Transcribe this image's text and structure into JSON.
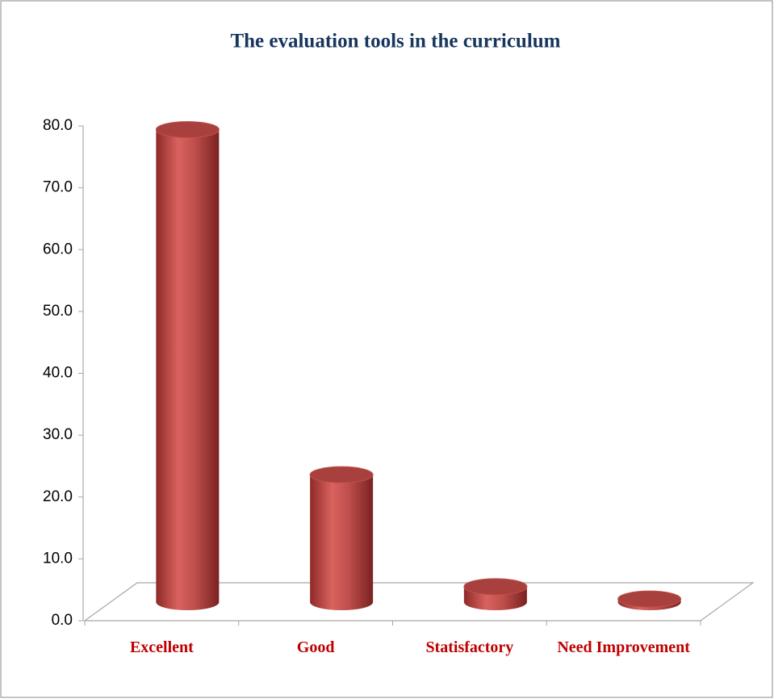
{
  "chart_data": {
    "type": "bar3d",
    "title": "The evaluation tools in the curriculum",
    "categories": [
      "Excellent",
      "Good",
      "Statisfactory",
      "Need Improvement"
    ],
    "values": [
      76.4,
      20.6,
      2.5,
      0.5
    ],
    "color": "#c0504d",
    "ylim": [
      0,
      80
    ],
    "yticks": [
      {
        "value": 0,
        "label": "0.0"
      },
      {
        "value": 10,
        "label": "10.0"
      },
      {
        "value": 20,
        "label": "20.0"
      },
      {
        "value": 30,
        "label": "30.0"
      },
      {
        "value": 40,
        "label": "40.0"
      },
      {
        "value": 50,
        "label": "50.0"
      },
      {
        "value": 60,
        "label": "60.0"
      },
      {
        "value": 70,
        "label": "70.0"
      },
      {
        "value": 80,
        "label": "80.0"
      }
    ],
    "grid": false
  }
}
